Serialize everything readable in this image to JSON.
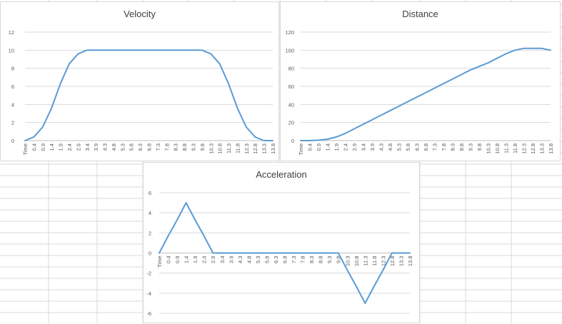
{
  "chart_data": [
    {
      "id": "velocity",
      "type": "line",
      "title": "Velocity",
      "xlabel": "",
      "ylabel": "",
      "ylim": [
        0,
        12
      ],
      "yticks": [
        0,
        2,
        4,
        6,
        8,
        10,
        12
      ],
      "grid": true,
      "legend": "none",
      "line_color": "#5b9bd5",
      "x": [
        "Time",
        "0.4",
        "0.9",
        "1.4",
        "1.9",
        "2.4",
        "2.9",
        "3.4",
        "3.9",
        "4.3",
        "4.8",
        "5.3",
        "5.8",
        "6.3",
        "6.8",
        "7.3",
        "7.8",
        "8.3",
        "8.8",
        "9.3",
        "9.8",
        "10.3",
        "10.8",
        "11.3",
        "11.8",
        "12.3",
        "12.8",
        "13.3",
        "13.8"
      ],
      "series": [
        {
          "name": "",
          "values": [
            0,
            0.4,
            1.5,
            3.6,
            6.3,
            8.5,
            9.6,
            10,
            10,
            10,
            10,
            10,
            10,
            10,
            10,
            10,
            10,
            10,
            10,
            10,
            10,
            9.6,
            8.5,
            6.3,
            3.6,
            1.5,
            0.4,
            0,
            0
          ]
        }
      ]
    },
    {
      "id": "distance",
      "type": "line",
      "title": "Distance",
      "xlabel": "",
      "ylabel": "",
      "ylim": [
        0,
        120
      ],
      "yticks": [
        0,
        20,
        40,
        60,
        80,
        100,
        120
      ],
      "grid": true,
      "legend": "none",
      "line_color": "#5b9bd5",
      "x": [
        "Time",
        "0.4",
        "0.9",
        "1.4",
        "1.9",
        "2.4",
        "2.9",
        "3.4",
        "3.9",
        "4.3",
        "4.8",
        "5.3",
        "5.8",
        "6.3",
        "6.8",
        "7.3",
        "7.8",
        "8.3",
        "8.8",
        "9.3",
        "9.8",
        "10.3",
        "10.8",
        "11.3",
        "11.8",
        "12.3",
        "12.8",
        "13.3",
        "13.8"
      ],
      "series": [
        {
          "name": "",
          "values": [
            0,
            0,
            0.5,
            1.5,
            4,
            8,
            13,
            18,
            23,
            28,
            33,
            38,
            43,
            48,
            53,
            58,
            63,
            68,
            73,
            78,
            82,
            86,
            91,
            96,
            100,
            102,
            102,
            102,
            100
          ]
        }
      ]
    },
    {
      "id": "acceleration",
      "type": "line",
      "title": "Acceleration",
      "xlabel": "",
      "ylabel": "",
      "ylim": [
        -6,
        6
      ],
      "yticks": [
        -6,
        -4,
        -2,
        0,
        2,
        4,
        6
      ],
      "grid": true,
      "legend": "none",
      "line_color": "#5b9bd5",
      "x": [
        "Time",
        "0.4",
        "0.9",
        "1.4",
        "1.9",
        "2.4",
        "2.9",
        "3.4",
        "3.9",
        "4.3",
        "4.8",
        "5.3",
        "5.8",
        "6.3",
        "6.8",
        "7.3",
        "7.8",
        "8.3",
        "8.8",
        "9.3",
        "9.8",
        "10.3",
        "10.8",
        "11.3",
        "11.8",
        "12.3",
        "12.8",
        "13.3",
        "13.8"
      ],
      "series": [
        {
          "name": "",
          "values": [
            0,
            1.7,
            3.3,
            5,
            3.3,
            1.7,
            0,
            0,
            0,
            0,
            0,
            0,
            0,
            0,
            0,
            0,
            0,
            0,
            0,
            0,
            0,
            -1.7,
            -3.3,
            -5,
            -3.3,
            -1.7,
            0,
            0,
            0
          ]
        }
      ]
    }
  ]
}
